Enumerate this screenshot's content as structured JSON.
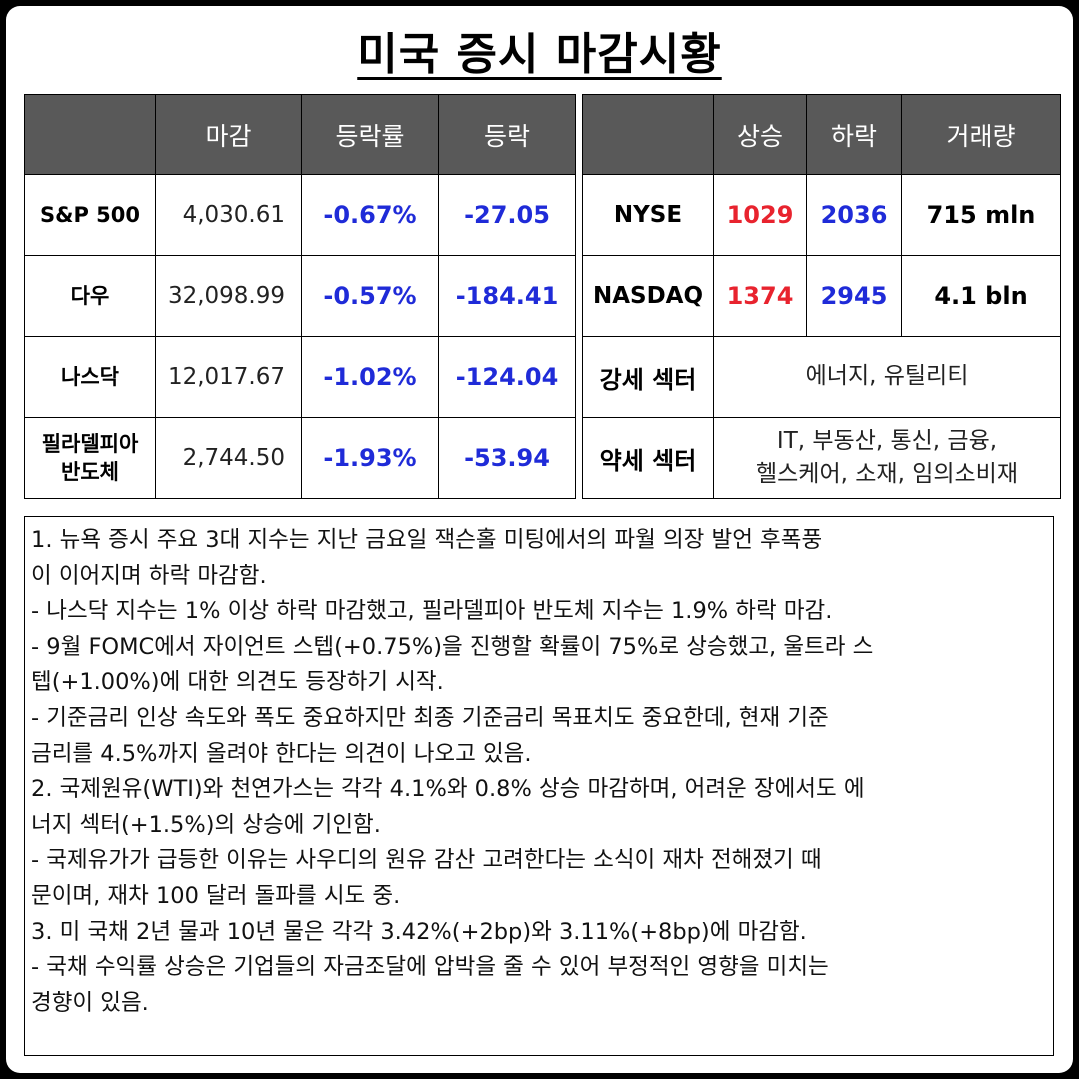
{
  "title": "미국 증시 마감시황",
  "index_table": {
    "headers": [
      "",
      "마감",
      "등락률",
      "등락"
    ],
    "rows": [
      {
        "name": "S&P 500",
        "close": "4,030.61",
        "rate": "-0.67%",
        "change": "-27.05"
      },
      {
        "name": "다우",
        "close": "32,098.99",
        "rate": "-0.57%",
        "change": "-184.41"
      },
      {
        "name": "나스닥",
        "close": "12,017.67",
        "rate": "-1.02%",
        "change": "-124.04"
      },
      {
        "name_line1": "필라델피아",
        "name_line2": "반도체",
        "close": "2,744.50",
        "rate": "-1.93%",
        "change": "-53.94"
      }
    ]
  },
  "exchange_table": {
    "headers": [
      "",
      "상승",
      "하락",
      "거래량"
    ],
    "rows": [
      {
        "name": "NYSE",
        "up": "1029",
        "down": "2036",
        "volume": "715 mln"
      },
      {
        "name": "NASDAQ",
        "up": "1374",
        "down": "2945",
        "volume": "4.1 bln"
      }
    ],
    "strong_sector": {
      "label": "강세 섹터",
      "value": "에너지, 유틸리티"
    },
    "weak_sector": {
      "label": "약세 섹터",
      "value_line1": "IT, 부동산, 통신, 금융,",
      "value_line2": "헬스케어, 소재, 임의소비재"
    }
  },
  "notes": [
    "1. 뉴욕 증시 주요 3대 지수는 지난 금요일 잭슨홀 미팅에서의 파월 의장 발언 후폭풍",
    "이 이어지며 하락 마감함.",
    "- 나스닥 지수는 1% 이상 하락 마감했고, 필라델피아 반도체 지수는 1.9% 하락 마감.",
    "- 9월 FOMC에서 자이언트 스텝(+0.75%)을 진행할 확률이 75%로 상승했고, 울트라 스",
    "텝(+1.00%)에 대한 의견도 등장하기 시작.",
    "- 기준금리 인상 속도와 폭도 중요하지만 최종 기준금리 목표치도 중요한데, 현재 기준",
    "금리를 4.5%까지 올려야 한다는 의견이 나오고 있음.",
    "2. 국제원유(WTI)와 천연가스는 각각 4.1%와 0.8% 상승 마감하며, 어려운 장에서도 에",
    "너지 섹터(+1.5%)의 상승에 기인함.",
    "- 국제유가가 급등한 이유는 사우디의 원유 감산 고려한다는 소식이 재차 전해졌기 때",
    "문이며, 재차 100 달러 돌파를 시도 중.",
    "3. 미 국채 2년 물과 10년 물은 각각 3.42%(+2bp)와 3.11%(+8bp)에 마감함.",
    "- 국채 수익률 상승은 기업들의 자금조달에 압박을 줄 수 있어 부정적인 영향을 미치는",
    "경향이 있음."
  ],
  "colors": {
    "header_bg": "#595959",
    "negative": "#1f2bd8",
    "advance": "#e8232e"
  }
}
